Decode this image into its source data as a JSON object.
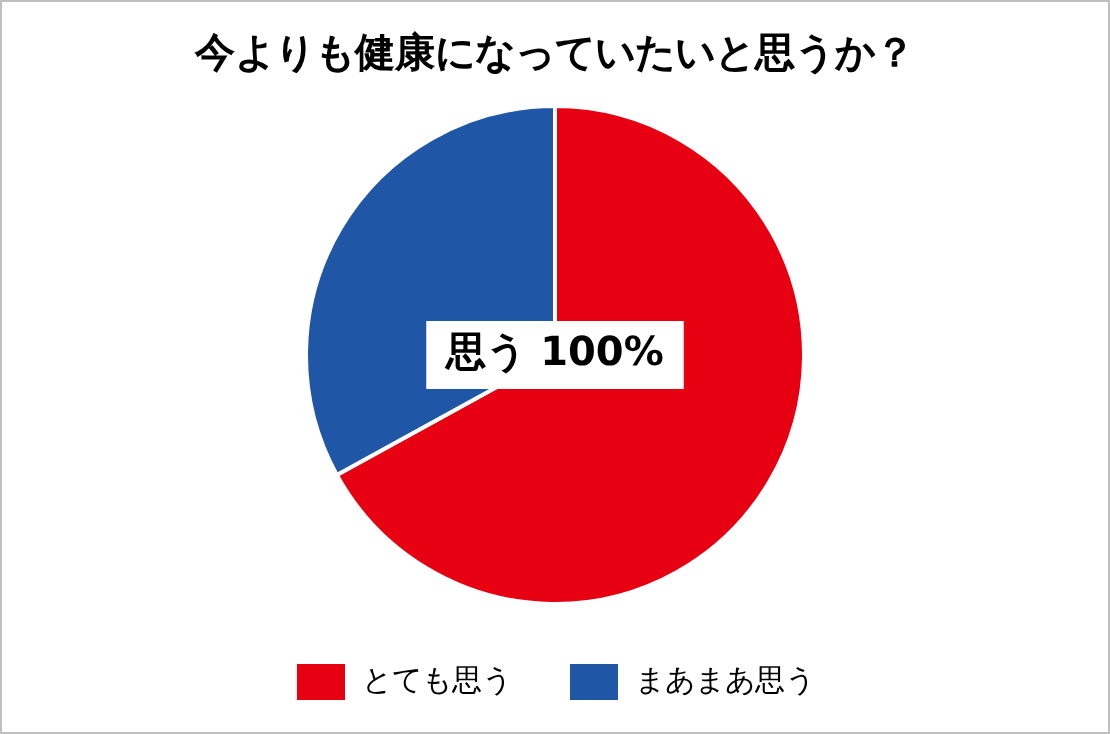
{
  "chart_data": {
    "type": "pie",
    "title": "今よりも健康になっていたいと思うか？",
    "categories": [
      "とても思う",
      "まあまあ思う"
    ],
    "values": [
      67,
      33
    ],
    "colors": [
      "#e60012",
      "#1f56a5"
    ],
    "annotations": [
      "思う 100%"
    ],
    "legend": "bottom"
  }
}
